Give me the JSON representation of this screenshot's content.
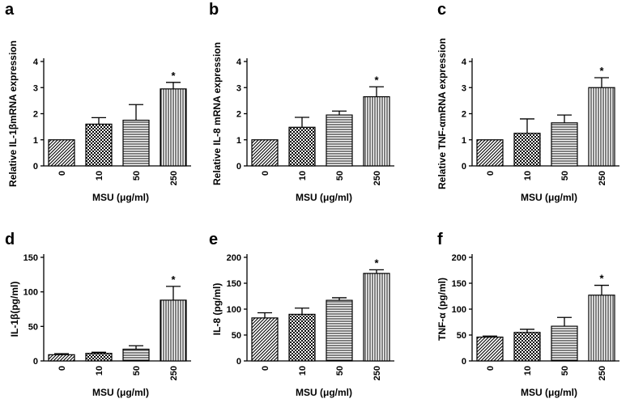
{
  "chart_data": [
    {
      "panel": "a",
      "type": "bar",
      "categories": [
        "0",
        "10",
        "50",
        "250"
      ],
      "values": [
        1.0,
        1.6,
        1.75,
        2.95
      ],
      "errors": [
        0,
        0.25,
        0.6,
        0.25
      ],
      "significant": [
        false,
        false,
        false,
        true
      ],
      "marker": "*",
      "ylabel": "Relative IL-1βmRNA expression",
      "xlabel": "MSU (μg/ml)",
      "ylim": [
        0,
        4
      ],
      "yticks": [
        0,
        1,
        2,
        3,
        4
      ]
    },
    {
      "panel": "b",
      "type": "bar",
      "categories": [
        "0",
        "10",
        "50",
        "250"
      ],
      "values": [
        1.0,
        1.48,
        1.95,
        2.65
      ],
      "errors": [
        0,
        0.38,
        0.15,
        0.38
      ],
      "significant": [
        false,
        false,
        false,
        true
      ],
      "marker": "*",
      "ylabel": "Relative IL-8 mRNA expression",
      "xlabel": "MSU (μg/ml)",
      "ylim": [
        0,
        4
      ],
      "yticks": [
        0,
        1,
        2,
        3,
        4
      ]
    },
    {
      "panel": "c",
      "type": "bar",
      "categories": [
        "0",
        "10",
        "50",
        "250"
      ],
      "values": [
        1.0,
        1.25,
        1.65,
        3.0
      ],
      "errors": [
        0,
        0.55,
        0.3,
        0.38
      ],
      "significant": [
        false,
        false,
        false,
        true
      ],
      "marker": "*",
      "ylabel": "Relative TNF-αmRNA expression",
      "xlabel": "MSU (μg/ml)",
      "ylim": [
        0,
        4
      ],
      "yticks": [
        0,
        1,
        2,
        3,
        4
      ]
    },
    {
      "panel": "d",
      "type": "bar",
      "categories": [
        "0",
        "10",
        "50",
        "250"
      ],
      "values": [
        9,
        11,
        17,
        88
      ],
      "errors": [
        1.5,
        1.5,
        5,
        20
      ],
      "significant": [
        false,
        false,
        false,
        true
      ],
      "marker": "*",
      "ylabel": "IL-1β(pg/ml)",
      "xlabel": "MSU (μg/ml)",
      "ylim": [
        0,
        150
      ],
      "yticks": [
        0,
        50,
        100,
        150
      ]
    },
    {
      "panel": "e",
      "type": "bar",
      "categories": [
        "0",
        "10",
        "50",
        "250"
      ],
      "values": [
        83,
        90,
        117,
        169
      ],
      "errors": [
        10,
        12,
        5,
        7
      ],
      "significant": [
        false,
        false,
        false,
        true
      ],
      "marker": "*",
      "ylabel": "IL-8 (pg/ml)",
      "xlabel": "MSU (μg/ml)",
      "ylim": [
        0,
        200
      ],
      "yticks": [
        0,
        50,
        100,
        150,
        200
      ]
    },
    {
      "panel": "f",
      "type": "bar",
      "categories": [
        "0",
        "10",
        "50",
        "250"
      ],
      "values": [
        46,
        55,
        67,
        127
      ],
      "errors": [
        2,
        6,
        17,
        19
      ],
      "significant": [
        false,
        false,
        false,
        true
      ],
      "marker": "*",
      "ylabel": "TNF-α (pg/ml)",
      "xlabel": "MSU (μg/ml)",
      "ylim": [
        0,
        200
      ],
      "yticks": [
        0,
        50,
        100,
        150,
        200
      ]
    }
  ]
}
